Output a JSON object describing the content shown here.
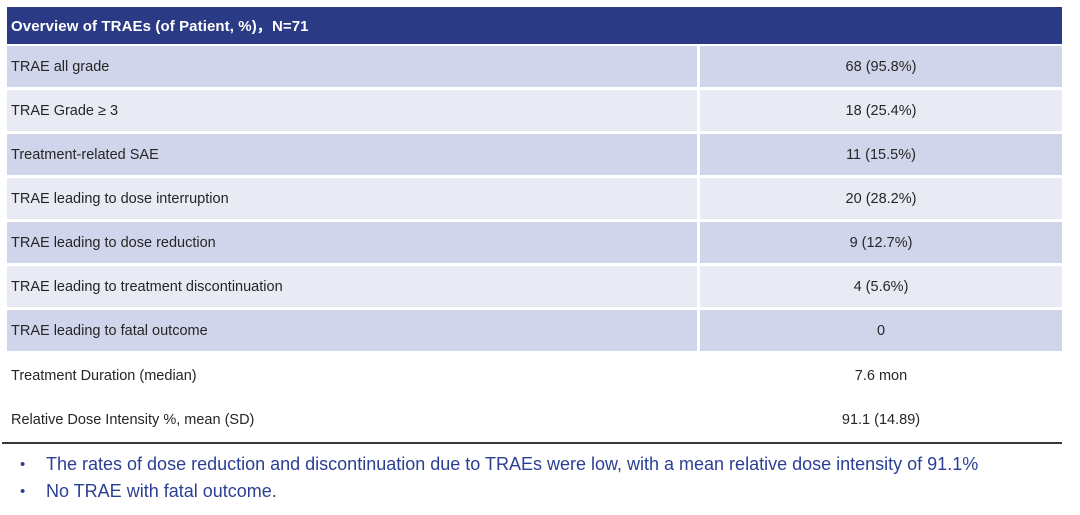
{
  "colors": {
    "header_bg": "#2B3A85",
    "header_text": "#FFFFFF",
    "row_dark": "#D0D5EB",
    "row_light": "#E9EBF4",
    "label_text": "#262626",
    "bullet_text": "#2B3F94",
    "bottom_rule": "#3A3A3A"
  },
  "table": {
    "title": "Overview of TRAEs (of Patient, %)，N=71",
    "rows": [
      {
        "label": "TRAE all grade",
        "value": "68 (95.8%)"
      },
      {
        "label": "TRAE Grade ≥ 3",
        "value": "18 (25.4%)"
      },
      {
        "label": "Treatment-related SAE",
        "value": "11 (15.5%)"
      },
      {
        "label": "TRAE leading to dose interruption",
        "value": "20 (28.2%)"
      },
      {
        "label": "TRAE leading to dose reduction",
        "value": "9 (12.7%)"
      },
      {
        "label": "TRAE leading to treatment discontinuation",
        "value": "4 (5.6%)"
      },
      {
        "label": "TRAE leading to fatal outcome",
        "value": "0"
      }
    ],
    "footer_rows": [
      {
        "label": "Treatment Duration (median)",
        "value": "7.6 mon"
      },
      {
        "label": "Relative Dose Intensity %, mean (SD)",
        "value": "91.1 (14.89)"
      }
    ]
  },
  "bullets": {
    "items": [
      {
        "text": "The rates of dose reduction and discontinuation due to TRAEs were low, with a mean relative dose intensity of 91.1%"
      },
      {
        "text": "No TRAE with fatal outcome."
      }
    ]
  }
}
